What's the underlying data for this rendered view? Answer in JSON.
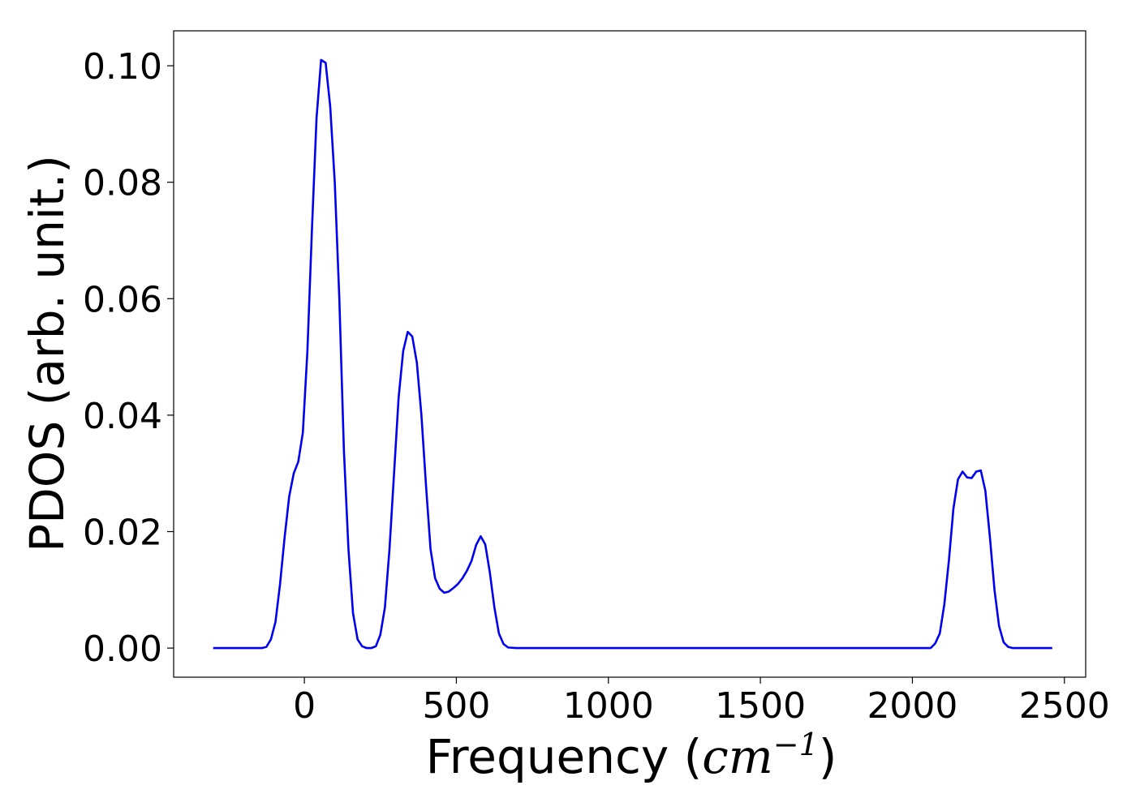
{
  "chart_data": {
    "type": "line",
    "title": "",
    "xlabel_prefix": "Frequency (",
    "xlabel_unit": "cm",
    "xlabel_exp": "−1",
    "xlabel_suffix": ")",
    "ylabel": "PDOS (arb. unit.)",
    "xlim": [
      -430,
      2570
    ],
    "ylim": [
      -0.005,
      0.106
    ],
    "xticks": [
      0,
      500,
      1000,
      1500,
      2000,
      2500
    ],
    "xtick_labels": [
      "0",
      "500",
      "1000",
      "1500",
      "2000",
      "2500"
    ],
    "yticks": [
      0.0,
      0.02,
      0.04,
      0.06,
      0.08,
      0.1
    ],
    "ytick_labels": [
      "0.00",
      "0.02",
      "0.04",
      "0.06",
      "0.08",
      "0.10"
    ],
    "grid": false,
    "line_color": "#0000ee",
    "series": [
      {
        "x": [
          -300,
          -140,
          -125,
          -110,
          -95,
          -80,
          -65,
          -50,
          -35,
          -20,
          -5,
          10,
          25,
          40,
          55,
          70,
          85,
          100,
          115,
          130,
          145,
          160,
          175,
          190,
          205,
          220,
          235,
          250,
          265,
          280,
          295,
          310,
          325,
          340,
          355,
          370,
          385,
          400,
          415,
          430,
          445,
          460,
          475,
          490,
          505,
          520,
          535,
          550,
          565,
          580,
          595,
          610,
          625,
          640,
          655,
          670,
          700,
          2060,
          2075,
          2090,
          2105,
          2120,
          2135,
          2150,
          2165,
          2180,
          2195,
          2210,
          2225,
          2240,
          2255,
          2270,
          2285,
          2300,
          2315,
          2330,
          2460
        ],
        "y": [
          0.0,
          0.0,
          0.0002,
          0.0015,
          0.0045,
          0.011,
          0.019,
          0.026,
          0.03,
          0.032,
          0.037,
          0.051,
          0.072,
          0.091,
          0.101,
          0.1005,
          0.093,
          0.08,
          0.06,
          0.034,
          0.017,
          0.006,
          0.0015,
          0.0003,
          0.0,
          0.0,
          0.0003,
          0.0023,
          0.007,
          0.017,
          0.03,
          0.043,
          0.051,
          0.0543,
          0.0535,
          0.049,
          0.04,
          0.028,
          0.017,
          0.012,
          0.0102,
          0.0095,
          0.0097,
          0.0103,
          0.011,
          0.012,
          0.0133,
          0.015,
          0.0177,
          0.0192,
          0.0178,
          0.013,
          0.007,
          0.0025,
          0.0007,
          0.0001,
          0.0,
          0.0,
          0.0008,
          0.0025,
          0.0075,
          0.015,
          0.024,
          0.029,
          0.0303,
          0.0293,
          0.0292,
          0.0303,
          0.0305,
          0.027,
          0.019,
          0.01,
          0.0038,
          0.001,
          0.0002,
          0.0,
          0.0
        ]
      }
    ]
  }
}
